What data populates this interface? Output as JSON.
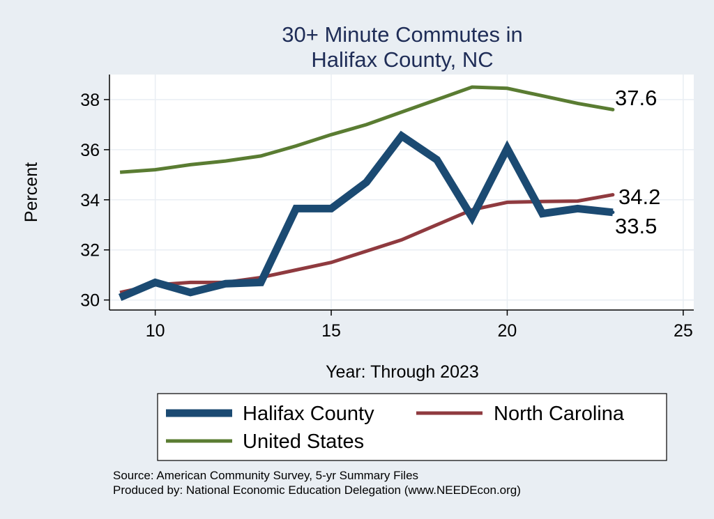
{
  "chart_data": {
    "type": "line",
    "title": [
      "30+ Minute Commutes in",
      "Halifax County, NC"
    ],
    "xlabel": "Year: Through 2023",
    "ylabel": "Percent",
    "xlim": [
      8.7,
      25.3
    ],
    "ylim": [
      29.6,
      39.0
    ],
    "xticks": [
      10,
      15,
      20,
      25
    ],
    "yticks": [
      30,
      32,
      34,
      36,
      38
    ],
    "grid": true,
    "legend_position": "bottom",
    "series": [
      {
        "name": "Halifax County",
        "color": "#1b4a72",
        "x": [
          9,
          10,
          11,
          12,
          13,
          14,
          15,
          16,
          17,
          18,
          19,
          20,
          21,
          22,
          23
        ],
        "y": [
          30.1,
          30.7,
          30.3,
          30.65,
          30.7,
          33.65,
          33.65,
          34.7,
          36.55,
          35.6,
          33.3,
          36.05,
          33.45,
          33.65,
          33.5
        ],
        "end_label": "33.5"
      },
      {
        "name": "North Carolina",
        "color": "#8f3a3f",
        "x": [
          9,
          10,
          11,
          12,
          13,
          14,
          15,
          16,
          17,
          18,
          19,
          20,
          21,
          22,
          23
        ],
        "y": [
          30.3,
          30.6,
          30.7,
          30.7,
          30.9,
          31.2,
          31.5,
          31.95,
          32.4,
          33.0,
          33.6,
          33.9,
          33.93,
          33.95,
          34.2
        ],
        "end_label": "34.2"
      },
      {
        "name": "United States",
        "color": "#5a7c32",
        "x": [
          9,
          10,
          11,
          12,
          13,
          14,
          15,
          16,
          17,
          18,
          19,
          20,
          21,
          22,
          23
        ],
        "y": [
          35.1,
          35.2,
          35.4,
          35.55,
          35.75,
          36.15,
          36.6,
          37.0,
          37.5,
          38.0,
          38.5,
          38.45,
          38.15,
          37.85,
          37.6
        ],
        "end_label": "37.6"
      }
    ],
    "source": [
      "Source: American Community Survey, 5-yr Summary Files",
      "Produced by: National Economic Education Delegation (www.NEEDEcon.org)"
    ]
  },
  "colors": {
    "background": "#e9eef3",
    "plot_background": "#ffffff",
    "grid": "#e9eef3",
    "title": "#1f2d57"
  }
}
